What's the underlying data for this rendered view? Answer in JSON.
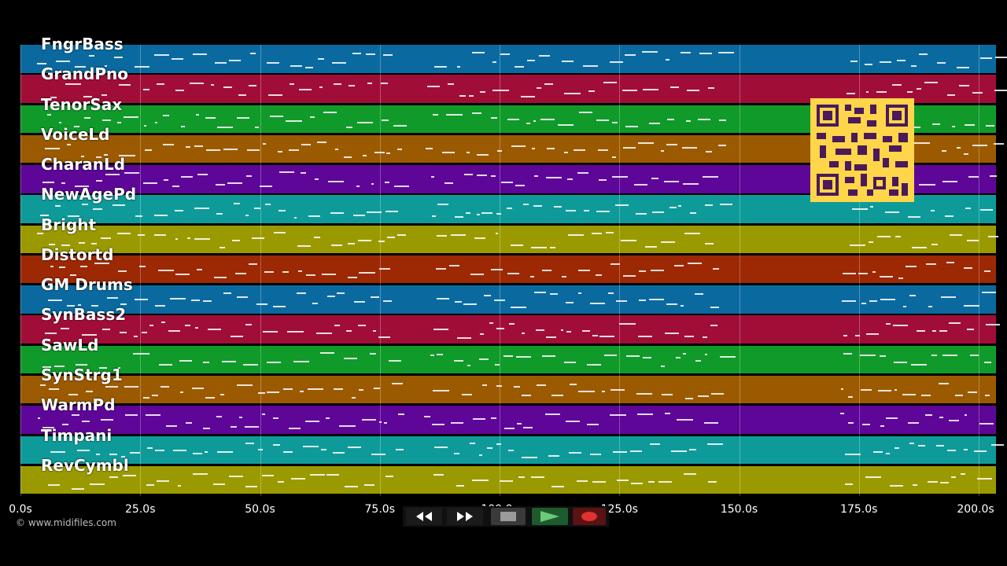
{
  "tracks": [
    {
      "name": "FngrBass",
      "color": "#0a6aa0"
    },
    {
      "name": "GrandPno",
      "color": "#a00e38"
    },
    {
      "name": "TenorSax",
      "color": "#109a2a"
    },
    {
      "name": "VoiceLd",
      "color": "#9c5a00"
    },
    {
      "name": "CharanLd",
      "color": "#5e0698"
    },
    {
      "name": "NewAgePd",
      "color": "#0f9a9a"
    },
    {
      "name": "Bright",
      "color": "#9a9a00"
    },
    {
      "name": "Distortd",
      "color": "#9c2804"
    },
    {
      "name": "GM Drums",
      "color": "#0a6aa0"
    },
    {
      "name": "SynBass2",
      "color": "#a00e38"
    },
    {
      "name": "SawLd",
      "color": "#109a2a"
    },
    {
      "name": "SynStrg1",
      "color": "#9c5a00"
    },
    {
      "name": "WarmPd",
      "color": "#5e0698"
    },
    {
      "name": "Timpani",
      "color": "#0f9a9a"
    },
    {
      "name": "RevCymbl",
      "color": "#9a9a00"
    }
  ],
  "timeline": {
    "ticks": [
      "0.0s",
      "25.0s",
      "50.0s",
      "75.0s",
      "100.0s",
      "125.0s",
      "150.0s",
      "175.0s",
      "200.0s"
    ],
    "tick_seconds": [
      0,
      25,
      50,
      75,
      100,
      125,
      150,
      175,
      200
    ],
    "max_seconds": 202
  },
  "transport": {
    "rewind_icon": "rewind-icon",
    "fast_forward_icon": "fast-forward-icon",
    "stop_icon": "stop-icon",
    "play_icon": "play-icon",
    "record_icon": "record-icon"
  },
  "copyright": "© www.midifiles.com",
  "qr_icon": "qr-code-icon"
}
